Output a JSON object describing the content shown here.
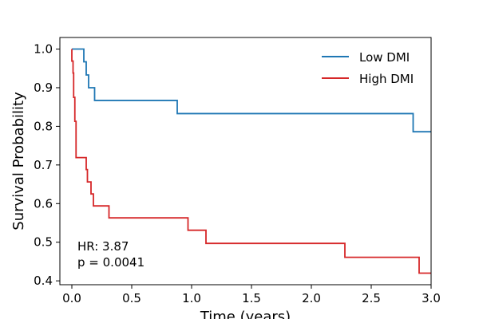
{
  "chart_data": {
    "type": "line",
    "step": true,
    "xlabel": "Time (years)",
    "ylabel": "Survival Probability",
    "xlim": [
      -0.1,
      3.0
    ],
    "ylim": [
      0.39,
      1.03
    ],
    "xticks": [
      0.0,
      0.5,
      1.0,
      1.5,
      2.0,
      2.5,
      3.0
    ],
    "xtick_labels": [
      "0.0",
      "0.5",
      "1.0",
      "1.5",
      "2.0",
      "2.5",
      "3.0"
    ],
    "yticks": [
      0.4,
      0.5,
      0.6,
      0.7,
      0.8,
      0.9,
      1.0
    ],
    "ytick_labels": [
      "0.4",
      "0.5",
      "0.6",
      "0.7",
      "0.8",
      "0.9",
      "1.0"
    ],
    "grid": false,
    "legend_position": "top-right",
    "series": [
      {
        "name": "Low DMI",
        "color": "#1f77b4",
        "points": [
          [
            0.0,
            1.0
          ],
          [
            0.1,
            1.0
          ],
          [
            0.1,
            0.967
          ],
          [
            0.12,
            0.967
          ],
          [
            0.12,
            0.933
          ],
          [
            0.14,
            0.933
          ],
          [
            0.14,
            0.9
          ],
          [
            0.19,
            0.9
          ],
          [
            0.19,
            0.867
          ],
          [
            0.88,
            0.867
          ],
          [
            0.88,
            0.833
          ],
          [
            2.85,
            0.833
          ],
          [
            2.85,
            0.786
          ],
          [
            3.0,
            0.786
          ]
        ]
      },
      {
        "name": "High DMI",
        "color": "#d62728",
        "points": [
          [
            0.0,
            1.0
          ],
          [
            0.0,
            0.969
          ],
          [
            0.01,
            0.969
          ],
          [
            0.01,
            0.938
          ],
          [
            0.015,
            0.938
          ],
          [
            0.015,
            0.875
          ],
          [
            0.025,
            0.875
          ],
          [
            0.025,
            0.813
          ],
          [
            0.035,
            0.813
          ],
          [
            0.035,
            0.719
          ],
          [
            0.12,
            0.719
          ],
          [
            0.12,
            0.688
          ],
          [
            0.13,
            0.688
          ],
          [
            0.13,
            0.656
          ],
          [
            0.16,
            0.656
          ],
          [
            0.16,
            0.625
          ],
          [
            0.18,
            0.625
          ],
          [
            0.18,
            0.594
          ],
          [
            0.31,
            0.594
          ],
          [
            0.31,
            0.563
          ],
          [
            0.97,
            0.563
          ],
          [
            0.97,
            0.531
          ],
          [
            1.12,
            0.531
          ],
          [
            1.12,
            0.497
          ],
          [
            2.28,
            0.497
          ],
          [
            2.28,
            0.461
          ],
          [
            2.9,
            0.461
          ],
          [
            2.9,
            0.42
          ],
          [
            3.0,
            0.42
          ]
        ]
      }
    ],
    "annotations": [
      "HR: 3.87",
      "p = 0.0041"
    ]
  }
}
